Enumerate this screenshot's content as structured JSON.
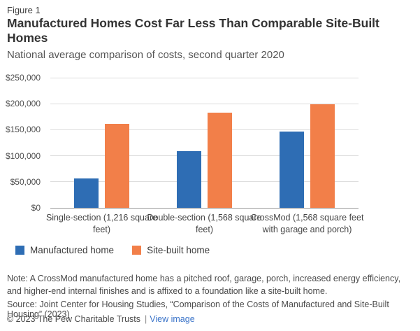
{
  "header": {
    "figure_label": "Figure 1",
    "title": "Manufactured Homes Cost Far Less Than Comparable Site-Built Homes",
    "subtitle": "National average comparison of costs, second quarter 2020"
  },
  "chart_data": {
    "type": "bar",
    "categories": [
      "Single-section (1,216 square feet)",
      "Double-section (1,568 square feet)",
      "CrossMod (1,568 square feet with garage and porch)"
    ],
    "series": [
      {
        "name": "Manufactured home",
        "color": "#2e6db4",
        "values": [
          57000,
          109000,
          146000
        ]
      },
      {
        "name": "Site-built home",
        "color": "#f27f49",
        "values": [
          161000,
          183000,
          199000
        ]
      }
    ],
    "ylim": [
      0,
      250000
    ],
    "ytick_step": 50000,
    "ytick_labels": [
      "$0",
      "$50,000",
      "$100,000",
      "$150,000",
      "$200,000",
      "$250,000"
    ],
    "grid": true,
    "legend_position": "bottom-left",
    "title": "National average comparison of costs, second quarter 2020",
    "xlabel": "",
    "ylabel": ""
  },
  "colors": {
    "gridline": "#dcdcdc",
    "axis_line": "#9b9b9b",
    "manufactured_blue": "#2e6db4",
    "site_built_orange": "#f27f49",
    "link_blue": "#3b74c9"
  },
  "footer": {
    "note": "Note: A CrossMod manufactured home has a pitched roof, garage, porch, increased energy efficiency, and higher-end internal finishes and is affixed to a foundation like a site-built home.",
    "source": "Source: Joint Center for Housing Studies, “Comparison of the Costs of Manufactured and Site-Built Housing” (2023)",
    "copyright": "© 2023 The Pew Charitable Trusts",
    "separator": "|",
    "view_image_label": "View image"
  }
}
